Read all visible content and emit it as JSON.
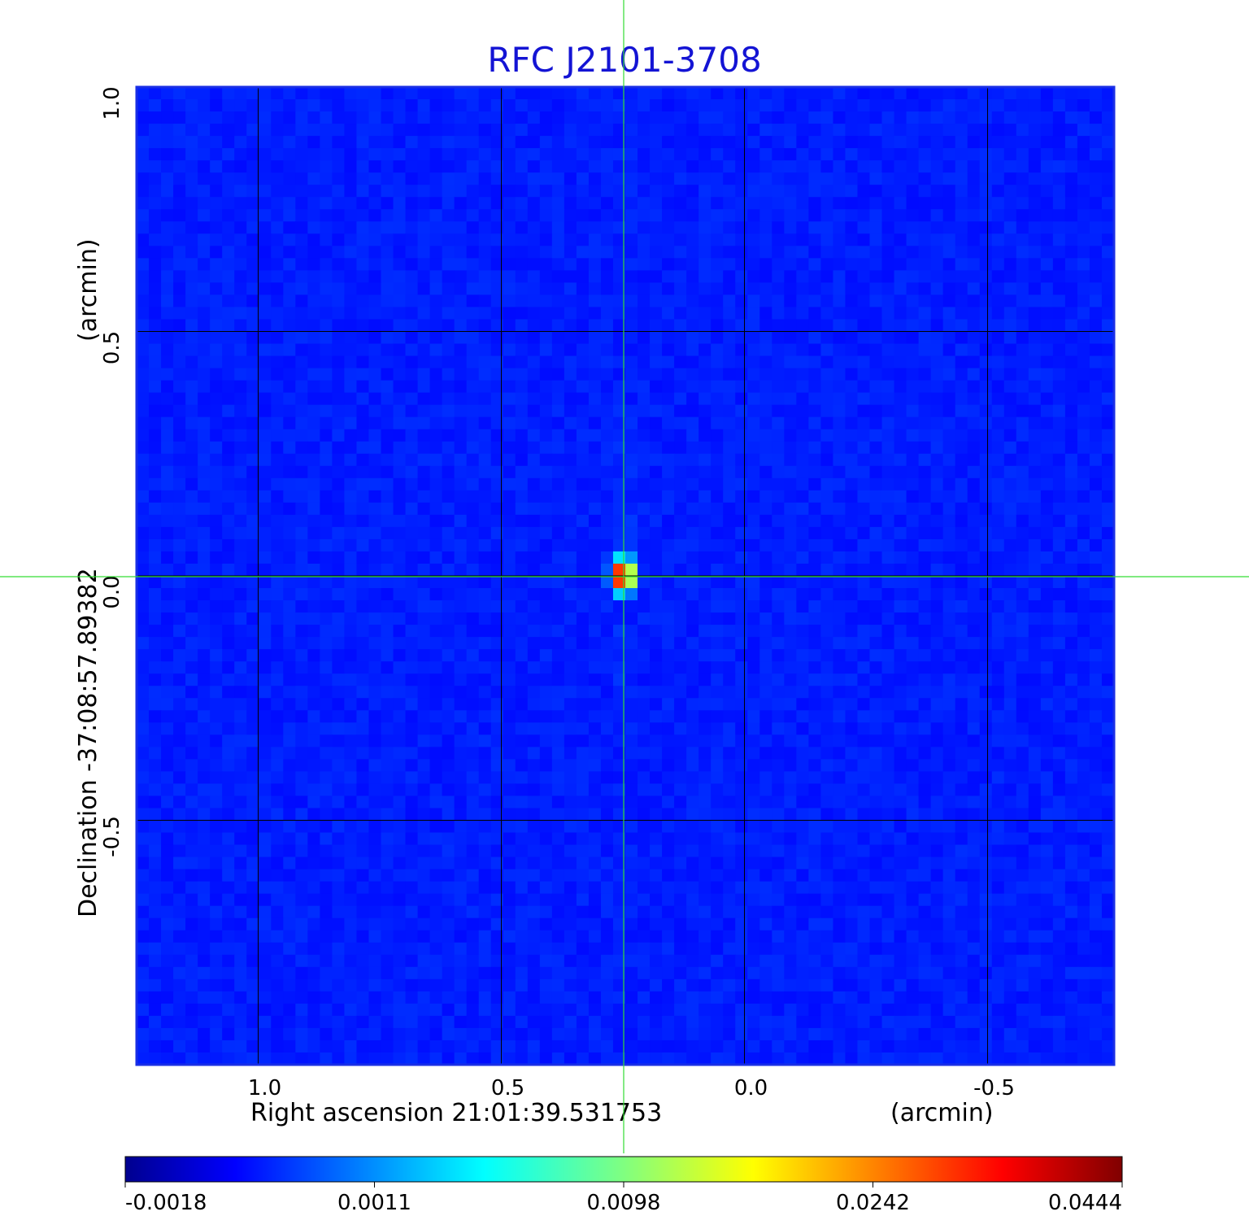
{
  "chart_data": {
    "type": "heatmap",
    "title": "RFC J2101-3708",
    "x_axis": {
      "label": "Right ascension  21:01:39.531753",
      "unit": "(arcmin)",
      "ticks": [
        1.0,
        0.5,
        0.0,
        -0.5
      ],
      "tick_labels": [
        "1.0",
        "0.5",
        "0.0",
        "-0.5"
      ],
      "range": [
        1.25,
        -0.76
      ]
    },
    "y_axis": {
      "label": "Declination  -37:08:57.89382",
      "unit": "(arcmin)",
      "ticks": [
        1.0,
        0.5,
        0.0,
        -0.5
      ],
      "tick_labels": [
        "1.0",
        "0.5",
        "0.0",
        "-0.5"
      ],
      "range": [
        -1.0,
        1.0
      ]
    },
    "grid": true,
    "colormap": "jet",
    "colorbar": {
      "tick_labels": [
        "-0.0018",
        "0.0011",
        "0.0098",
        "0.0242",
        "0.0444"
      ],
      "min": -0.0018,
      "max": 0.0444
    },
    "background_level": 0.0004,
    "peak": {
      "ra_offset": 0.25,
      "dec_offset": 0.0,
      "value": 0.0444
    },
    "crosshair": {
      "ra_offset": 0.25,
      "dec_offset": 0.0,
      "color": "#33dd33"
    },
    "frame_color": "#1a2fe6"
  }
}
